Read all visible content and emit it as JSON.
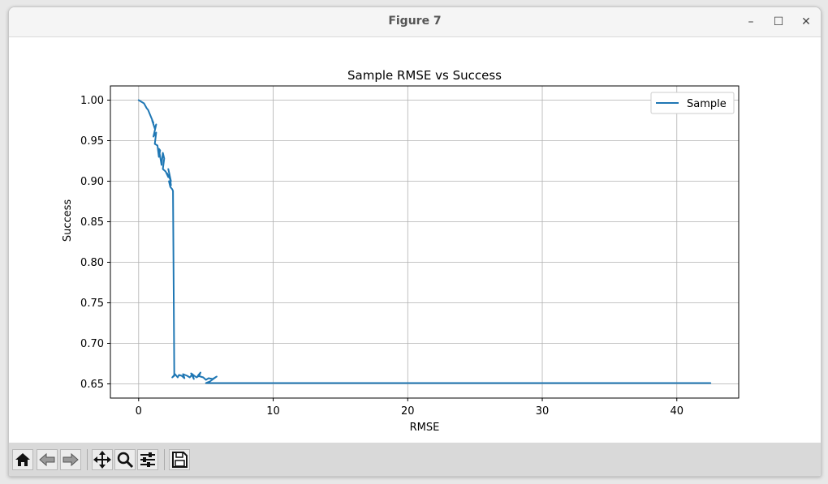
{
  "window": {
    "title": "Figure 7",
    "controls": {
      "minimize": "–",
      "maximize": "☐",
      "close": "✕"
    }
  },
  "toolbar": {
    "buttons": [
      "home-icon",
      "back-arrow-icon",
      "forward-arrow-icon",
      "pan-icon",
      "zoom-icon",
      "configure-subplots-icon",
      "save-icon"
    ]
  },
  "chart_data": {
    "type": "line",
    "title": "Sample RMSE vs Success",
    "xlabel": "RMSE",
    "ylabel": "Success",
    "xlim": [
      -2.1,
      44.6
    ],
    "ylim": [
      0.6325,
      1.0175
    ],
    "xticks": [
      0,
      10,
      20,
      30,
      40
    ],
    "yticks": [
      0.65,
      0.7,
      0.75,
      0.8,
      0.85,
      0.9,
      0.95,
      1.0
    ],
    "xtick_labels": [
      "0",
      "10",
      "20",
      "30",
      "40"
    ],
    "ytick_labels": [
      "0.65",
      "0.70",
      "0.75",
      "0.80",
      "0.85",
      "0.90",
      "0.95",
      "1.00"
    ],
    "grid": true,
    "legend": "top-right",
    "line_color": "#1f77b4",
    "series": [
      {
        "name": "Sample",
        "x": [
          0.0,
          0.2,
          0.4,
          0.6,
          0.7,
          0.9,
          1.1,
          1.0,
          1.2,
          1.3,
          1.1,
          1.3,
          1.2,
          1.4,
          1.5,
          1.6,
          1.5,
          1.7,
          1.8,
          1.9,
          1.8,
          2.0,
          2.2,
          2.1,
          2.3,
          2.4,
          2.2,
          2.3,
          2.4,
          2.25,
          2.35,
          2.5,
          2.55,
          2.65,
          2.5,
          2.7,
          2.9,
          3.0,
          3.2,
          3.4,
          3.3,
          3.6,
          3.8,
          4.0,
          4.1,
          3.9,
          4.3,
          4.5,
          4.6,
          4.4,
          4.8,
          5.0,
          5.2,
          5.5,
          5.8,
          5.3,
          5.0,
          5.5,
          6.0,
          7.0,
          8.0,
          9.0,
          10.0,
          11.0,
          12.0,
          13.5,
          15.0,
          20.0,
          25.0,
          30.0,
          35.0,
          40.0,
          42.5
        ],
        "y": [
          1.0,
          0.998,
          0.996,
          0.99,
          0.988,
          0.98,
          0.972,
          0.975,
          0.965,
          0.97,
          0.955,
          0.96,
          0.946,
          0.944,
          0.93,
          0.938,
          0.94,
          0.92,
          0.935,
          0.928,
          0.915,
          0.912,
          0.905,
          0.91,
          0.904,
          0.9,
          0.915,
          0.908,
          0.895,
          0.9,
          0.893,
          0.89,
          0.888,
          0.66,
          0.658,
          0.662,
          0.658,
          0.661,
          0.66,
          0.657,
          0.662,
          0.66,
          0.658,
          0.662,
          0.656,
          0.663,
          0.658,
          0.66,
          0.664,
          0.66,
          0.658,
          0.655,
          0.657,
          0.656,
          0.659,
          0.653,
          0.651,
          0.651,
          0.651,
          0.651,
          0.651,
          0.651,
          0.651,
          0.651,
          0.651,
          0.651,
          0.651,
          0.651,
          0.651,
          0.651,
          0.651,
          0.651,
          0.651
        ]
      }
    ]
  }
}
